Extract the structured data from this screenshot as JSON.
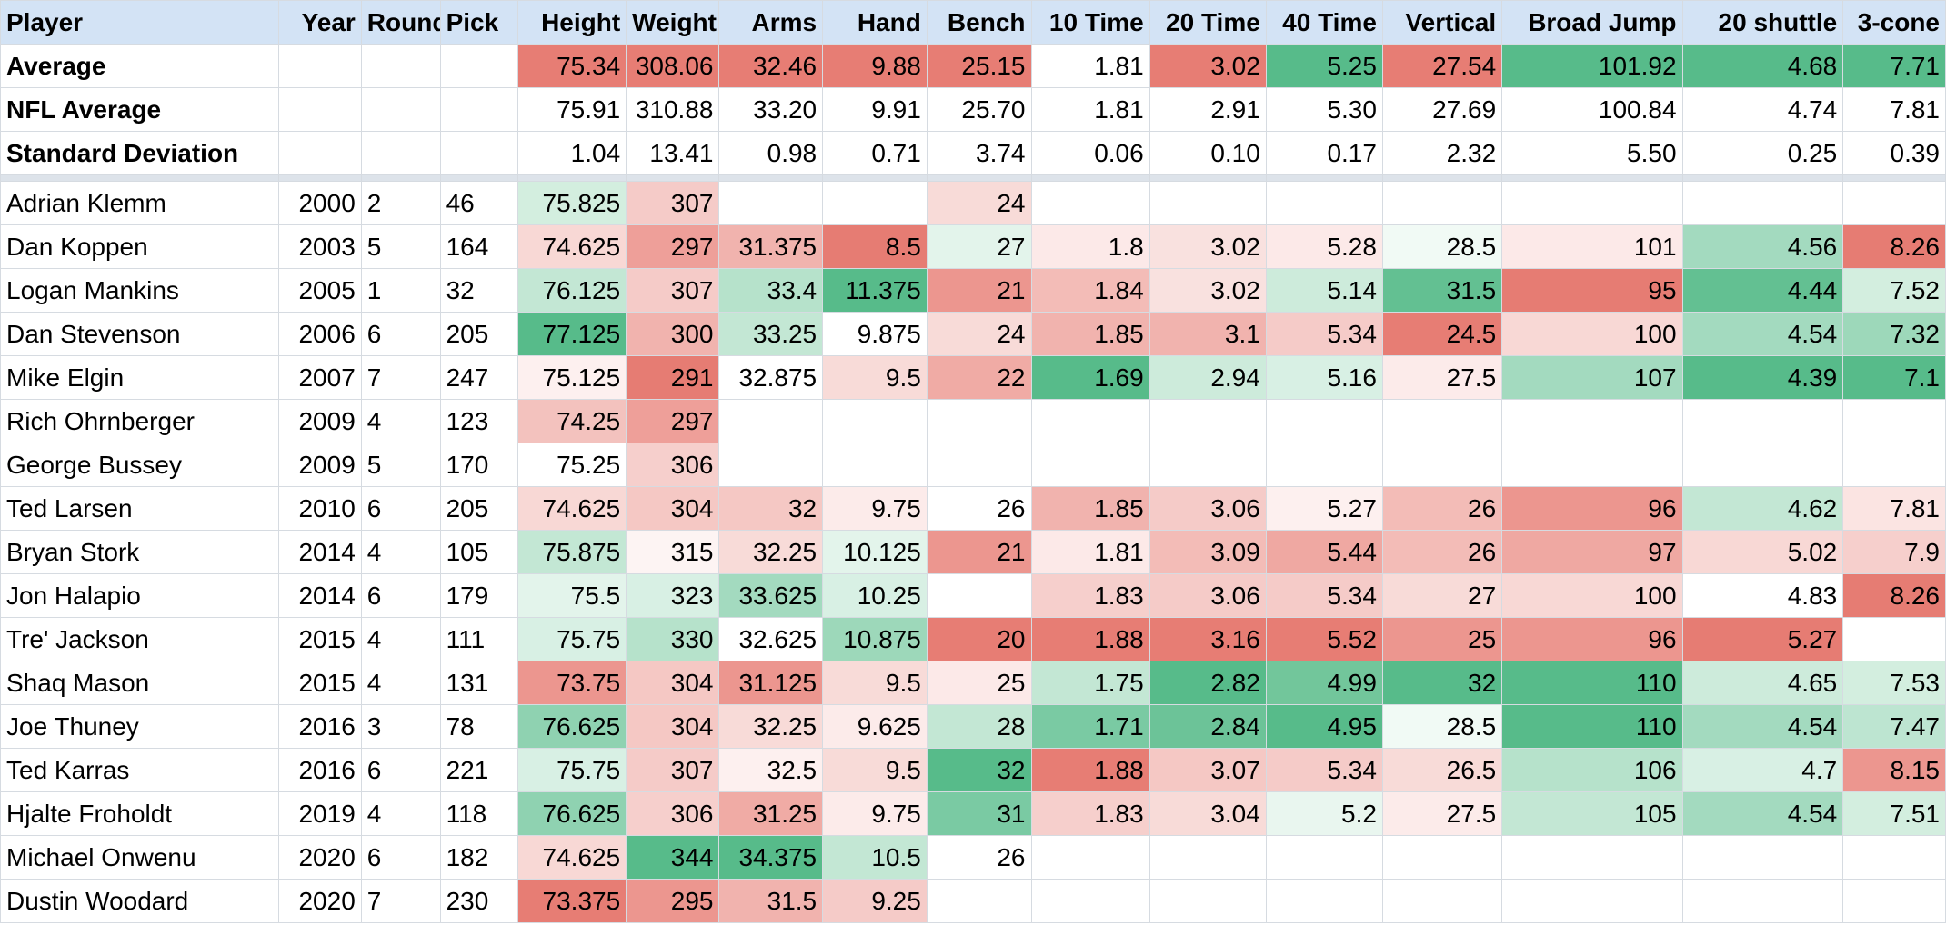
{
  "colors": {
    "header_bg": "#d3e3f5",
    "grid": "#d6dbe1",
    "scale_bad": "#e67c73",
    "scale_mid": "#ffffff",
    "scale_good": "#57bb8a"
  },
  "columns": [
    "Player",
    "Year",
    "Round",
    "Pick",
    "Height",
    "Weight",
    "Arms",
    "Hand",
    "Bench",
    "10 Time",
    "20 Time",
    "40 Time",
    "Vertical",
    "Broad Jump",
    "20 shuttle",
    "3-cone"
  ],
  "summary_rows": [
    {
      "label": "Average",
      "values": [
        "",
        "",
        "",
        "75.34",
        "308.06",
        "32.46",
        "9.88",
        "25.15",
        "1.81",
        "3.02",
        "5.25",
        "27.54",
        "101.92",
        "4.68",
        "7.71"
      ],
      "colors": [
        "",
        "",
        "",
        "#e77d74",
        "#e77d74",
        "#e77d74",
        "#e77d74",
        "#e77d74",
        "#ffffff",
        "#e77d74",
        "#57bb8a",
        "#e77d74",
        "#57bb8a",
        "#57bb8a",
        "#57bb8a"
      ]
    },
    {
      "label": "NFL Average",
      "values": [
        "",
        "",
        "",
        "75.91",
        "310.88",
        "33.20",
        "9.91",
        "25.70",
        "1.81",
        "2.91",
        "5.30",
        "27.69",
        "100.84",
        "4.74",
        "7.81"
      ],
      "colors": [
        "",
        "",
        "",
        "",
        "",
        "",
        "",
        "",
        "",
        "",
        "",
        "",
        "",
        "",
        ""
      ]
    },
    {
      "label": "Standard Deviation",
      "values": [
        "",
        "",
        "",
        "1.04",
        "13.41",
        "0.98",
        "0.71",
        "3.74",
        "0.06",
        "0.10",
        "0.17",
        "2.32",
        "5.50",
        "0.25",
        "0.39"
      ],
      "colors": [
        "",
        "",
        "",
        "",
        "",
        "",
        "",
        "",
        "",
        "",
        "",
        "",
        "",
        "",
        ""
      ]
    }
  ],
  "players": [
    {
      "name": "Adrian Klemm",
      "values": [
        "2000",
        "2",
        "46",
        "75.825",
        "307",
        "",
        "",
        "24",
        "",
        "",
        "",
        "",
        "",
        "",
        ""
      ],
      "colors": [
        "",
        "",
        "",
        "#d3eedf",
        "#f5cbc8",
        "",
        "",
        "#f8dbd8",
        "",
        "",
        "",
        "",
        "",
        "",
        ""
      ]
    },
    {
      "name": "Dan Koppen",
      "values": [
        "2003",
        "5",
        "164",
        "74.625",
        "297",
        "31.375",
        "8.5",
        "27",
        "1.8",
        "3.02",
        "5.28",
        "28.5",
        "101",
        "4.56",
        "8.26"
      ],
      "colors": [
        "",
        "",
        "",
        "#f8d8d5",
        "#ee9f99",
        "#f1b3ae",
        "#e67c73",
        "#e3f4eb",
        "#fce9e8",
        "#f9e1df",
        "#fce9e8",
        "#f1faf5",
        "#fce9e8",
        "#a3dabf",
        "#e67c73"
      ]
    },
    {
      "name": "Logan Mankins",
      "values": [
        "2005",
        "1",
        "32",
        "76.125",
        "307",
        "33.4",
        "11.375",
        "21",
        "1.84",
        "3.02",
        "5.14",
        "31.5",
        "95",
        "4.44",
        "7.52"
      ],
      "colors": [
        "",
        "",
        "",
        "#c3e7d4",
        "#f5cbc8",
        "#b6e2cb",
        "#57bb8a",
        "#ec968f",
        "#f3bcb7",
        "#f9e1df",
        "#cdebdb",
        "#63c092",
        "#e67c73",
        "#63c092",
        "#d3eedf"
      ]
    },
    {
      "name": "Dan Stevenson",
      "values": [
        "2006",
        "6",
        "205",
        "77.125",
        "300",
        "33.25",
        "9.875",
        "24",
        "1.85",
        "3.1",
        "5.34",
        "24.5",
        "100",
        "4.54",
        "7.32"
      ],
      "colors": [
        "",
        "",
        "",
        "#57bb8a",
        "#f1b3ae",
        "#c3e7d4",
        "#ffffff",
        "#f8dbd8",
        "#f1b3ae",
        "#f1b3ae",
        "#f5cbc8",
        "#e77d74",
        "#f8d8d5",
        "#a3dabf",
        "#9dd8ba"
      ]
    },
    {
      "name": "Mike Elgin",
      "values": [
        "2007",
        "7",
        "247",
        "75.125",
        "291",
        "32.875",
        "9.5",
        "22",
        "1.69",
        "2.94",
        "5.16",
        "27.5",
        "107",
        "4.39",
        "7.1"
      ],
      "colors": [
        "",
        "",
        "",
        "#fdf0ef",
        "#e67c73",
        "#ffffff",
        "#f8dbd8",
        "#f0aba5",
        "#57bb8a",
        "#cdebdb",
        "#d8f0e4",
        "#fcebea",
        "#a3dabf",
        "#57bb8a",
        "#57bb8a"
      ]
    },
    {
      "name": "Rich Ohrnberger",
      "values": [
        "2009",
        "4",
        "123",
        "74.25",
        "297",
        "",
        "",
        "",
        "",
        "",
        "",
        "",
        "",
        "",
        ""
      ],
      "colors": [
        "",
        "",
        "",
        "#f3c2be",
        "#ee9f99",
        "",
        "",
        "",
        "",
        "",
        "",
        "",
        "",
        "",
        ""
      ]
    },
    {
      "name": "George Bussey",
      "values": [
        "2009",
        "5",
        "170",
        "75.25",
        "306",
        "",
        "",
        "",
        "",
        "",
        "",
        "",
        "",
        "",
        ""
      ],
      "colors": [
        "",
        "",
        "",
        "",
        "#f6cfcc",
        "",
        "",
        "",
        "",
        "",
        "",
        "",
        "",
        "",
        ""
      ]
    },
    {
      "name": "Ted Larsen",
      "values": [
        "2010",
        "6",
        "205",
        "74.625",
        "304",
        "32",
        "9.75",
        "26",
        "1.85",
        "3.06",
        "5.27",
        "26",
        "96",
        "4.62",
        "7.81"
      ],
      "colors": [
        "",
        "",
        "",
        "#f8d8d5",
        "#f5c8c4",
        "#f5c8c4",
        "#fcebea",
        "#ffffff",
        "#f1b3ae",
        "#f5cbc8",
        "#fdf0ef",
        "#f3bcb7",
        "#ec968f",
        "#c3e7d4",
        "#fbe4e2"
      ]
    },
    {
      "name": "Bryan Stork",
      "values": [
        "2014",
        "4",
        "105",
        "75.875",
        "315",
        "32.25",
        "10.125",
        "21",
        "1.81",
        "3.09",
        "5.44",
        "26",
        "97",
        "5.02",
        "7.9"
      ],
      "colors": [
        "",
        "",
        "",
        "#c3e7d4",
        "#fdf4f3",
        "#f8dbd8",
        "#e3f4eb",
        "#ec968f",
        "#fce9e8",
        "#f3bcb7",
        "#efa8a2",
        "#f3bcb7",
        "#efa8a2",
        "#f8d8d5",
        "#f6cfcc"
      ]
    },
    {
      "name": "Jon Halapio",
      "values": [
        "2014",
        "6",
        "179",
        "75.5",
        "323",
        "33.625",
        "10.25",
        "",
        "1.83",
        "3.06",
        "5.34",
        "27",
        "100",
        "4.83",
        "8.26"
      ],
      "colors": [
        "",
        "",
        "",
        "#e3f4eb",
        "#d8f0e4",
        "#a3dabf",
        "#d8f0e4",
        "",
        "#f6cfcc",
        "#f5cbc8",
        "#f5cbc8",
        "#f8dbd8",
        "#f8d8d5",
        "#ffffff",
        "#e67c73"
      ]
    },
    {
      "name": "Tre' Jackson",
      "values": [
        "2015",
        "4",
        "111",
        "75.75",
        "330",
        "32.625",
        "10.875",
        "20",
        "1.88",
        "3.16",
        "5.52",
        "25",
        "96",
        "5.27",
        ""
      ],
      "colors": [
        "",
        "",
        "",
        "#d8f0e4",
        "#b6e2cb",
        "#ffffff",
        "#9dd8ba",
        "#e77d74",
        "#e77d74",
        "#e77d74",
        "#e77d74",
        "#ec968f",
        "#ec968f",
        "#e67c73",
        ""
      ]
    },
    {
      "name": "Shaq Mason",
      "values": [
        "2015",
        "4",
        "131",
        "73.75",
        "304",
        "31.125",
        "9.5",
        "25",
        "1.75",
        "2.82",
        "4.99",
        "32",
        "110",
        "4.65",
        "7.53"
      ],
      "colors": [
        "",
        "",
        "",
        "#ec968f",
        "#f5c8c4",
        "#ec968f",
        "#f8dbd8",
        "#fce9e8",
        "#c3e7d4",
        "#57bb8a",
        "#72c69b",
        "#57bb8a",
        "#57bb8a",
        "#cdebdb",
        "#d3eedf"
      ]
    },
    {
      "name": "Joe Thuney",
      "values": [
        "2016",
        "3",
        "78",
        "76.625",
        "304",
        "32.25",
        "9.625",
        "28",
        "1.71",
        "2.84",
        "4.95",
        "28.5",
        "110",
        "4.54",
        "7.47"
      ],
      "colors": [
        "",
        "",
        "",
        "#8fd2b1",
        "#f5c8c4",
        "#f8dbd8",
        "#fcebea",
        "#c3e7d4",
        "#7acaa3",
        "#6cc398",
        "#57bb8a",
        "#f1faf5",
        "#57bb8a",
        "#a3dabf",
        "#bde5d1"
      ]
    },
    {
      "name": "Ted Karras",
      "values": [
        "2016",
        "6",
        "221",
        "75.75",
        "307",
        "32.5",
        "9.5",
        "32",
        "1.88",
        "3.07",
        "5.34",
        "26.5",
        "106",
        "4.7",
        "8.15"
      ],
      "colors": [
        "",
        "",
        "",
        "#d8f0e4",
        "#f5cbc8",
        "#fdf0ef",
        "#f8dbd8",
        "#57bb8a",
        "#e77d74",
        "#f5c8c4",
        "#f5cbc8",
        "#f8dbd8",
        "#b6e2cb",
        "#d8f0e4",
        "#ec968f"
      ]
    },
    {
      "name": "Hjalte Froholdt",
      "values": [
        "2019",
        "4",
        "118",
        "76.625",
        "306",
        "31.25",
        "9.75",
        "31",
        "1.83",
        "3.04",
        "5.2",
        "27.5",
        "105",
        "4.54",
        "7.51"
      ],
      "colors": [
        "",
        "",
        "",
        "#8fd2b1",
        "#f6cfcc",
        "#f0aba5",
        "#fcebea",
        "#7acaa3",
        "#f6cfcc",
        "#f8dbd8",
        "#e9f6ef",
        "#fcebea",
        "#c3e7d4",
        "#a3dabf",
        "#d3eedf"
      ]
    },
    {
      "name": "Michael Onwenu",
      "values": [
        "2020",
        "6",
        "182",
        "74.625",
        "344",
        "34.375",
        "10.5",
        "26",
        "",
        "",
        "",
        "",
        "",
        "",
        ""
      ],
      "colors": [
        "",
        "",
        "",
        "#f8d8d5",
        "#57bb8a",
        "#57bb8a",
        "#c3e7d4",
        "#ffffff",
        "",
        "",
        "",
        "",
        "",
        "",
        ""
      ]
    },
    {
      "name": "Dustin Woodard",
      "values": [
        "2020",
        "7",
        "230",
        "73.375",
        "295",
        "31.5",
        "9.25",
        "",
        "",
        "",
        "",
        "",
        "",
        "",
        ""
      ],
      "colors": [
        "",
        "",
        "",
        "#e77d74",
        "#ec968f",
        "#f1b3ae",
        "#f5cbc8",
        "",
        "",
        "",
        "",
        "",
        "",
        "",
        ""
      ]
    }
  ]
}
